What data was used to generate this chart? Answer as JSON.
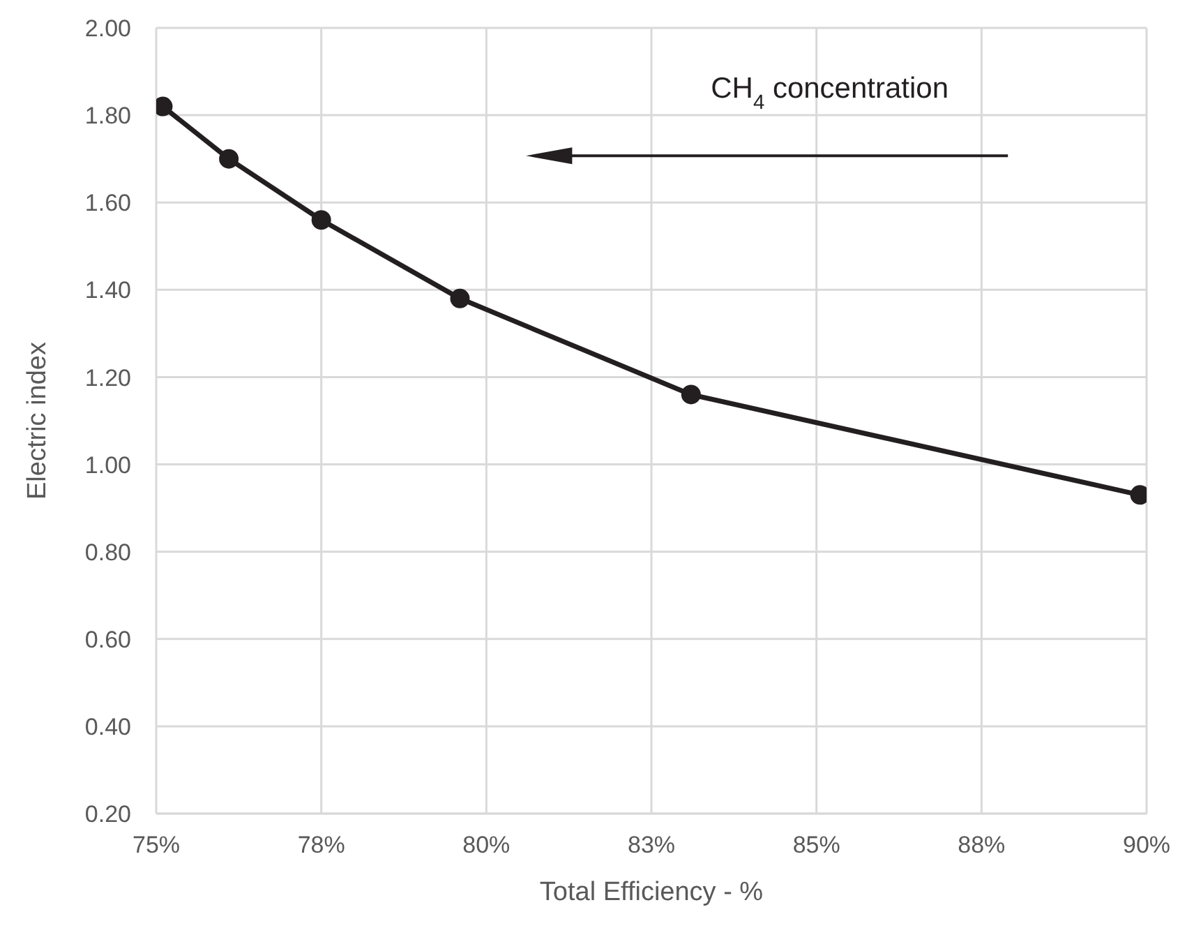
{
  "chart_data": {
    "type": "line",
    "xlabel": "Total Efficiency - %",
    "ylabel": "Electric index",
    "x": [
      75.1,
      76.1,
      77.5,
      79.6,
      83.1,
      89.9
    ],
    "series": [
      {
        "color": "#231f20",
        "values": [
          1.82,
          1.7,
          1.56,
          1.38,
          1.16,
          0.93
        ]
      }
    ],
    "xlim": [
      75,
      90
    ],
    "xticks": [
      {
        "value": 75,
        "label": "75%"
      },
      {
        "value": 77.5,
        "label": "78%"
      },
      {
        "value": 80,
        "label": "80%"
      },
      {
        "value": 82.5,
        "label": "83%"
      },
      {
        "value": 85,
        "label": "85%"
      },
      {
        "value": 87.5,
        "label": "88%"
      },
      {
        "value": 90,
        "label": "90%"
      }
    ],
    "ylim": [
      0.2,
      2.0
    ],
    "yticks": [
      {
        "value": 0.2,
        "label": "0.20"
      },
      {
        "value": 0.4,
        "label": "0.40"
      },
      {
        "value": 0.6,
        "label": "0.60"
      },
      {
        "value": 0.8,
        "label": "0.80"
      },
      {
        "value": 1.0,
        "label": "1.00"
      },
      {
        "value": 1.2,
        "label": "1.20"
      },
      {
        "value": 1.4,
        "label": "1.40"
      },
      {
        "value": 1.6,
        "label": "1.60"
      },
      {
        "value": 1.8,
        "label": "1.80"
      },
      {
        "value": 2.0,
        "label": "2.00"
      }
    ],
    "annotations": [
      "CH$_{4}$ concentration"
    ],
    "grid": true,
    "marker": "circle",
    "line_style": "solid",
    "legend": false
  }
}
